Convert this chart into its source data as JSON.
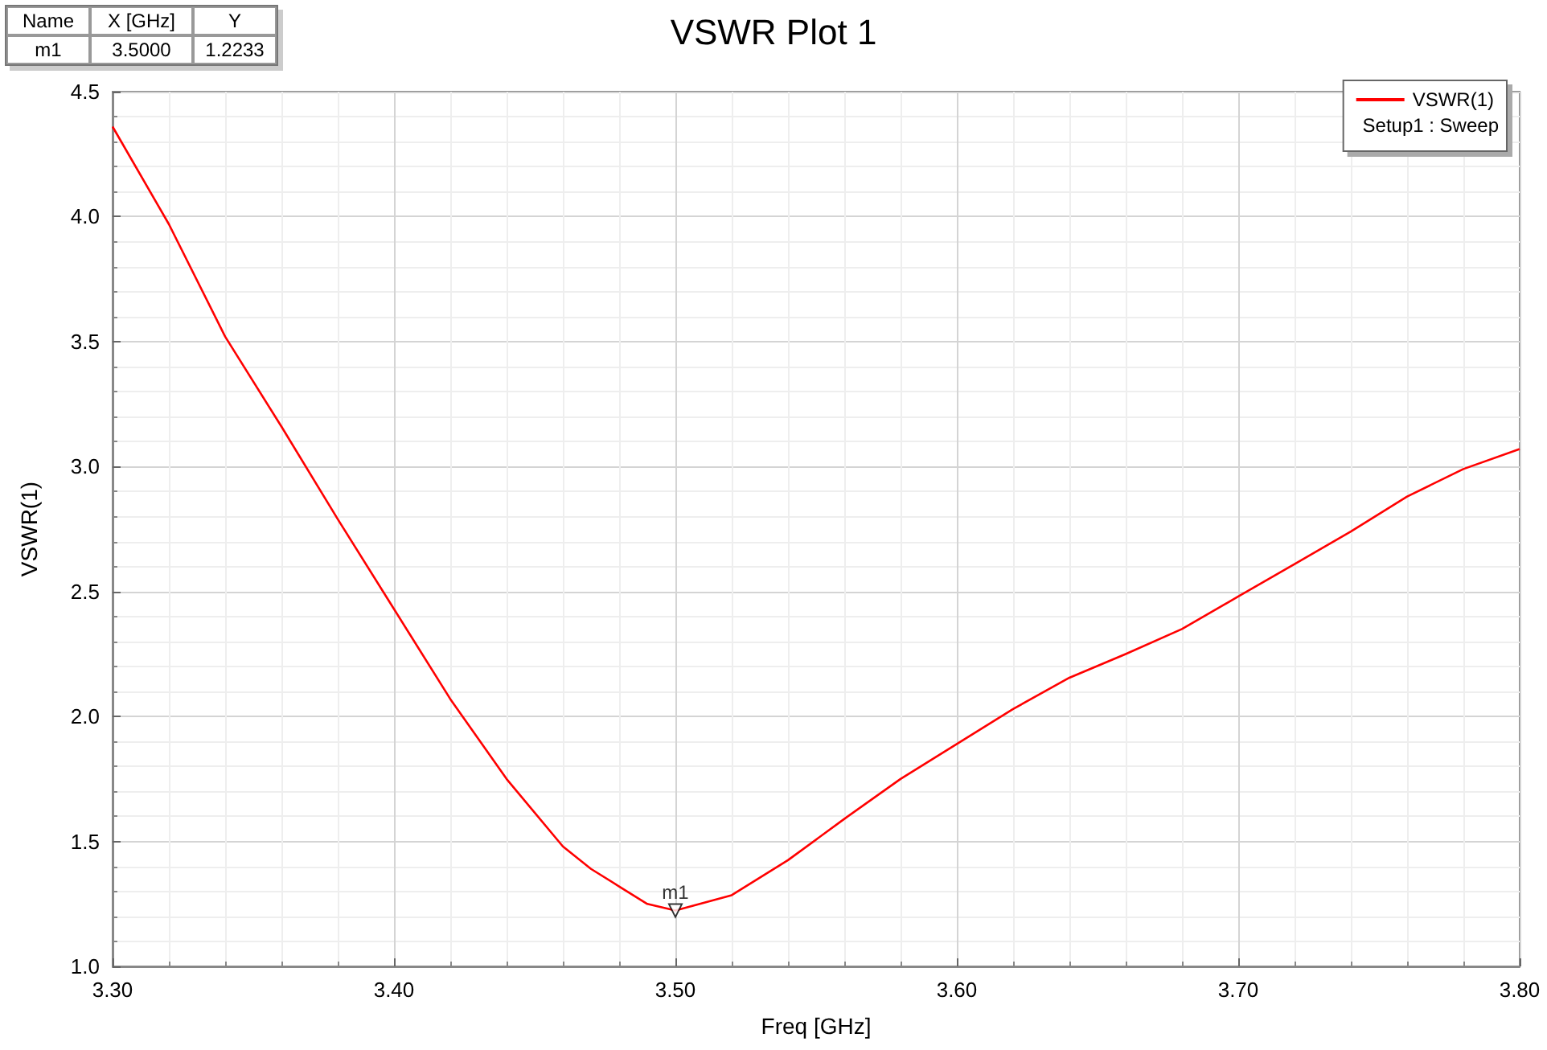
{
  "chart_data": {
    "type": "line",
    "title": "VSWR Plot 1",
    "xlabel": "Freq [GHz]",
    "ylabel": "VSWR(1)",
    "legend_title": "Setup1 : Sweep",
    "x": [
      3.3,
      3.32,
      3.34,
      3.36,
      3.38,
      3.4,
      3.42,
      3.44,
      3.46,
      3.47,
      3.48,
      3.49,
      3.5,
      3.52,
      3.54,
      3.56,
      3.58,
      3.6,
      3.62,
      3.64,
      3.66,
      3.68,
      3.7,
      3.72,
      3.74,
      3.76,
      3.78,
      3.8
    ],
    "series": [
      {
        "name": "VSWR(1)",
        "color": "#ff0000",
        "values": [
          4.36,
          3.97,
          3.52,
          3.16,
          2.79,
          2.43,
          2.07,
          1.75,
          1.48,
          1.39,
          1.32,
          1.25,
          1.2233,
          1.285,
          1.425,
          1.59,
          1.75,
          1.89,
          2.03,
          2.155,
          2.25,
          2.35,
          2.48,
          2.61,
          2.74,
          2.88,
          2.99,
          3.07
        ]
      },
      {
        "type": "scatter",
        "name": "m1",
        "marker": "triangle",
        "color": "#000000",
        "x": [
          3.5
        ],
        "values": [
          1.2233
        ]
      }
    ],
    "xlim": [
      3.3,
      3.8
    ],
    "xticks": [
      {
        "value": 3.3,
        "label": "3.30"
      },
      {
        "value": 3.4,
        "label": "3.40"
      },
      {
        "value": 3.5,
        "label": "3.50"
      },
      {
        "value": 3.6,
        "label": "3.60"
      },
      {
        "value": 3.7,
        "label": "3.70"
      },
      {
        "value": 3.8,
        "label": "3.80"
      }
    ],
    "ylim": [
      1,
      4.5
    ],
    "yticks": [
      {
        "value": 1,
        "label": "1.0"
      },
      {
        "value": 1.5,
        "label": "1.5"
      },
      {
        "value": 2,
        "label": "2.0"
      },
      {
        "value": 2.5,
        "label": "2.5"
      },
      {
        "value": 3,
        "label": "3.0"
      },
      {
        "value": 3.5,
        "label": "3.5"
      },
      {
        "value": 4,
        "label": "4.0"
      },
      {
        "value": 4.5,
        "label": "4.5"
      }
    ],
    "grid": true,
    "legend": "top right",
    "marker": "none",
    "line_style": "solid",
    "annotations": [
      "Name",
      "X [GHz]",
      "Y",
      "m1",
      "3.5000",
      "1.2233"
    ]
  }
}
